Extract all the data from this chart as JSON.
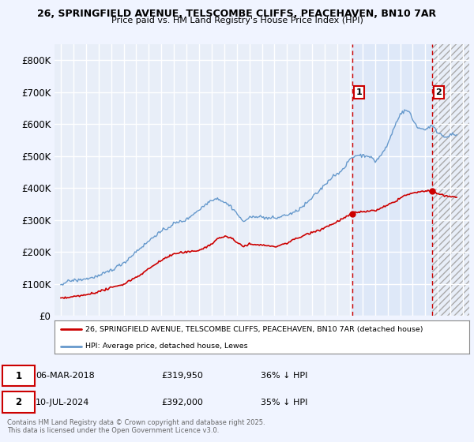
{
  "title_line1": "26, SPRINGFIELD AVENUE, TELSCOMBE CLIFFS, PEACEHAVEN, BN10 7AR",
  "title_line2": "Price paid vs. HM Land Registry's House Price Index (HPI)",
  "background_color": "#f0f4ff",
  "plot_bg_color": "#e8eef8",
  "plot_bg_color_shaded": "#dde8f8",
  "grid_color": "#ffffff",
  "ylim": [
    0,
    850000
  ],
  "yticks": [
    0,
    100000,
    200000,
    300000,
    400000,
    500000,
    600000,
    700000,
    800000
  ],
  "ytick_labels": [
    "£0",
    "£100K",
    "£200K",
    "£300K",
    "£400K",
    "£500K",
    "£600K",
    "£700K",
    "£800K"
  ],
  "hpi_color": "#6699cc",
  "price_color": "#cc0000",
  "vline_color": "#cc0000",
  "marker1_year": 2018.18,
  "marker2_year": 2024.53,
  "marker1_price": 319950,
  "marker2_price": 392000,
  "legend_line1": "26, SPRINGFIELD AVENUE, TELSCOMBE CLIFFS, PEACEHAVEN, BN10 7AR (detached house)",
  "legend_line2": "HPI: Average price, detached house, Lewes",
  "copyright": "Contains HM Land Registry data © Crown copyright and database right 2025.\nThis data is licensed under the Open Government Licence v3.0.",
  "xlim_start": 1995,
  "xlim_end": 2027,
  "xticks": [
    1995,
    1996,
    1997,
    1998,
    1999,
    2000,
    2001,
    2002,
    2003,
    2004,
    2005,
    2006,
    2007,
    2008,
    2009,
    2010,
    2011,
    2012,
    2013,
    2014,
    2015,
    2016,
    2017,
    2018,
    2019,
    2020,
    2021,
    2022,
    2023,
    2024,
    2025,
    2026,
    2027
  ]
}
